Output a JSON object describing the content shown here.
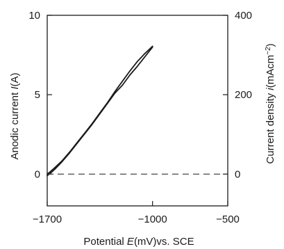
{
  "chart_data": {
    "type": "line",
    "xlabel_parts": [
      "Potential ",
      "E",
      "(mV)vs. SCE"
    ],
    "ylabel_left_parts": [
      "Anodic current ",
      "I",
      "(A)"
    ],
    "ylabel_right_parts": [
      "Current density ",
      "i",
      "(mAcm",
      "−2",
      ")"
    ],
    "xlim": [
      -1700,
      -500
    ],
    "ylim_left": [
      -2,
      10
    ],
    "ylim_right": [
      -80,
      400
    ],
    "x_ticks": [
      -1700,
      -1000,
      -500
    ],
    "x_tick_labels": [
      "−1700",
      "−1000",
      "−500"
    ],
    "y_left_ticks": [
      0,
      5,
      10
    ],
    "y_left_tick_labels": [
      "0",
      "5",
      "10"
    ],
    "y_right_ticks": [
      0,
      200,
      400
    ],
    "y_right_tick_labels": [
      "0",
      "200",
      "400"
    ],
    "baseline": {
      "y": 0,
      "style": "dashed"
    },
    "grid": false,
    "series": [
      {
        "x": [
          -1700,
          -1680,
          -1650,
          -1600,
          -1550,
          -1500,
          -1450,
          -1400,
          -1350,
          -1300,
          -1250,
          -1200,
          -1150,
          -1100,
          -1050,
          -1000
        ],
        "y": [
          -0.1,
          0.05,
          0.3,
          0.8,
          1.35,
          1.95,
          2.55,
          3.15,
          3.8,
          4.45,
          5.1,
          5.6,
          6.25,
          6.8,
          7.4,
          8.0
        ]
      },
      {
        "x": [
          -1000,
          -1050,
          -1100,
          -1150,
          -1200,
          -1250,
          -1300,
          -1350,
          -1400,
          -1450,
          -1500,
          -1550,
          -1600,
          -1650,
          -1680,
          -1700
        ],
        "y": [
          8.05,
          7.6,
          7.1,
          6.5,
          5.85,
          5.2,
          4.5,
          3.85,
          3.2,
          2.6,
          2.0,
          1.4,
          0.85,
          0.4,
          0.15,
          0.0
        ]
      }
    ],
    "colors": {
      "line": "#1a1a1a",
      "axis": "#1a1a1a",
      "baseline": "#333333"
    }
  }
}
